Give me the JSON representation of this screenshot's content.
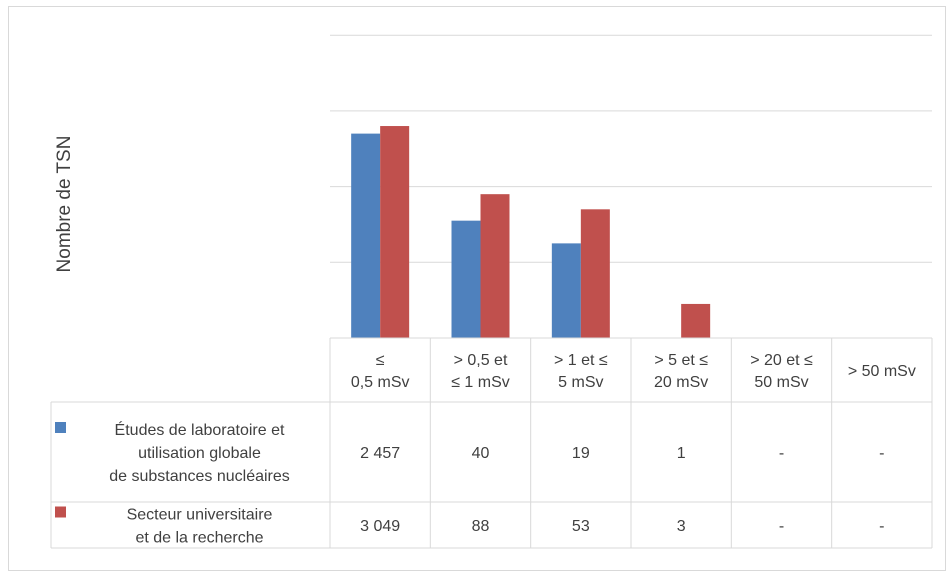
{
  "chart_data": {
    "type": "bar",
    "ylabel": "Nombre de TSN",
    "categories": [
      [
        "≤",
        "0,5 mSv"
      ],
      [
        "> 0,5 et",
        "≤ 1 mSv"
      ],
      [
        "> 1 et ≤",
        "5 mSv"
      ],
      [
        "> 5 et ≤",
        "20 mSv"
      ],
      [
        "> 20 et ≤",
        "50 mSv"
      ],
      [
        "> 50 mSv"
      ]
    ],
    "series": [
      {
        "name": [
          "Études de laboratoire et",
          "utilisation globale",
          "de substances nucléaires"
        ],
        "color": "#4f81bd",
        "bar_values": [
          2.7,
          1.55,
          1.25,
          0,
          0,
          0
        ],
        "table_values": [
          "2 457",
          "40",
          "19",
          "1",
          "-",
          "-"
        ]
      },
      {
        "name": [
          "Secteur universitaire",
          "et de la recherche"
        ],
        "color": "#c0504d",
        "bar_values": [
          2.8,
          1.9,
          1.7,
          0.45,
          0,
          0
        ],
        "table_values": [
          "3 049",
          "88",
          "53",
          "3",
          "-",
          "-"
        ]
      }
    ],
    "ylim": [
      0,
      4
    ],
    "y_gridlines": [
      1,
      2,
      3,
      4
    ],
    "y_tick_labels_visible": false,
    "grid": true
  }
}
